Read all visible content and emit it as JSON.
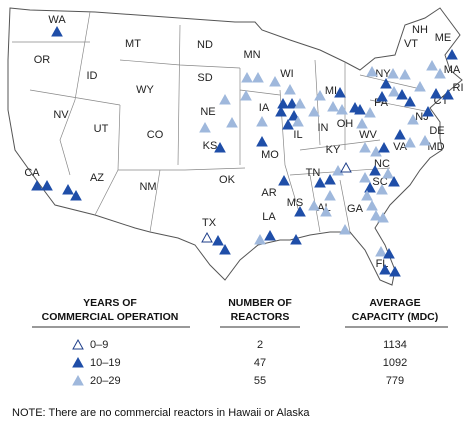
{
  "map": {
    "states": [
      "WA",
      "OR",
      "MT",
      "ND",
      "MN",
      "ME",
      "VT",
      "NH",
      "ID",
      "SD",
      "WI",
      "NY",
      "MA",
      "MI",
      "RI",
      "WY",
      "CT",
      "IA",
      "PA",
      "NJ",
      "NV",
      "NE",
      "OH",
      "DE",
      "UT",
      "IL",
      "IN",
      "MD",
      "CA",
      "CO",
      "KS",
      "MO",
      "WV",
      "VA",
      "KY",
      "NC",
      "AZ",
      "NM",
      "OK",
      "TN",
      "AR",
      "SC",
      "MS",
      "AL",
      "GA",
      "TX",
      "LA",
      "FL"
    ]
  },
  "legend": {
    "headers": [
      [
        "YEARS OF",
        "COMMERCIAL OPERATION"
      ],
      [
        "NUMBER OF",
        "REACTORS"
      ],
      [
        "AVERAGE",
        "CAPACITY (MDC)"
      ]
    ],
    "rows": [
      [
        "0–9",
        2,
        1134
      ],
      [
        "10–19",
        47,
        1092
      ],
      [
        "20–29",
        55,
        779
      ]
    ]
  },
  "note": "NOTE: There are no commercial reactors in Hawaii or Alaska"
}
